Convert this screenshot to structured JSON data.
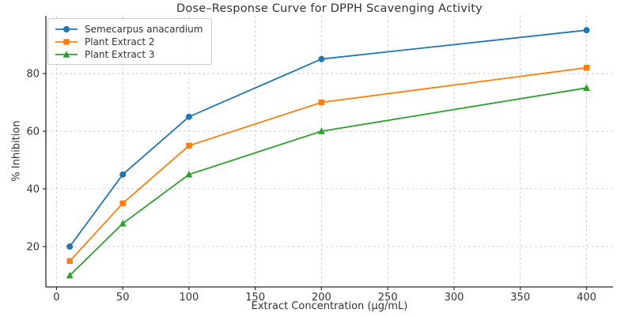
{
  "chart_data": {
    "type": "line",
    "title": "Dose–Response Curve for DPPH Scavenging Activity",
    "xlabel": "Extract Concentration (μg/mL)",
    "ylabel": "% Inhibition",
    "x": [
      10,
      50,
      100,
      200,
      400
    ],
    "series": [
      {
        "name": "Semecarpus anacardium",
        "values": [
          20,
          45,
          65,
          85,
          95
        ],
        "color": "#1f77b4",
        "marker": "circle"
      },
      {
        "name": "Plant Extract 2",
        "values": [
          15,
          35,
          55,
          70,
          82
        ],
        "color": "#ff7f0e",
        "marker": "square"
      },
      {
        "name": "Plant Extract 3",
        "values": [
          10,
          28,
          45,
          60,
          75
        ],
        "color": "#2ca02c",
        "marker": "triangle"
      }
    ],
    "xticks": [
      0,
      50,
      100,
      150,
      200,
      250,
      300,
      350,
      400
    ],
    "yticks": [
      20,
      40,
      60,
      80
    ],
    "xlim": [
      -8,
      420
    ],
    "ylim": [
      6,
      100
    ],
    "grid": true,
    "legend_position": "upper-left",
    "colors": {
      "grid": "#cccccc",
      "axis": "#2b2b2b",
      "text": "#333333",
      "background": "#ffffff"
    }
  }
}
